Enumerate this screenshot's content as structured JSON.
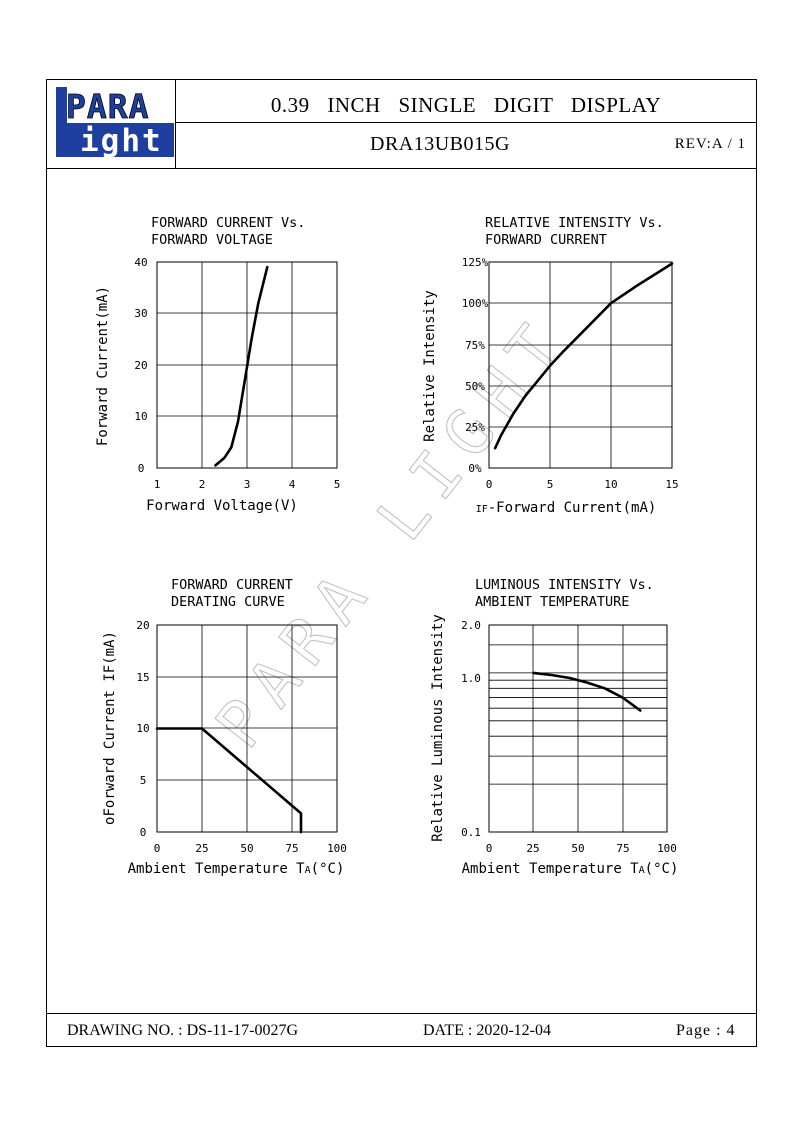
{
  "header": {
    "logo_top": "PARA",
    "logo_bottom": "ight",
    "logo_l": "L",
    "title": "0.39 INCH SINGLE DIGIT DISPLAY",
    "part_number": "DRA13UB015G",
    "revision": "REV:A / 1"
  },
  "watermark": "PARA LIGHT",
  "footer": {
    "drawing_no": "DRAWING NO. : DS-11-17-0027G",
    "date": "DATE : 2020-12-04",
    "page": "Page : 4"
  },
  "chart_data": [
    {
      "type": "line",
      "title_line1": "FORWARD CURRENT Vs.",
      "title_line2": "FORWARD VOLTAGE",
      "xlabel": "Forward Voltage(V)",
      "ylabel": "Forward Current(mA)",
      "xlim": [
        1,
        5
      ],
      "ylim": [
        0,
        40
      ],
      "xticks": [
        "1",
        "2",
        "3",
        "4",
        "5"
      ],
      "yticks": [
        "0",
        "10",
        "20",
        "30",
        "40"
      ],
      "grid": true,
      "series": [
        {
          "x": [
            2.3,
            2.5,
            2.65,
            2.8,
            2.95,
            3.1,
            3.25,
            3.45
          ],
          "y": [
            0.5,
            2,
            4,
            9,
            17,
            25,
            32,
            39
          ]
        }
      ]
    },
    {
      "type": "line",
      "title_line1": "RELATIVE INTENSITY Vs.",
      "title_line2": "FORWARD CURRENT",
      "xlabel": "IF-Forward Current(mA)",
      "xlabel_prefix": "IF",
      "xlabel_rest": "-Forward Current(mA)",
      "ylabel": "Relative Intensity",
      "xlim": [
        0,
        15
      ],
      "ylim": [
        0,
        125
      ],
      "xticks": [
        "0",
        "5",
        "10",
        "15"
      ],
      "yticks": [
        "0%",
        "25%",
        "50%",
        "75%",
        "100%",
        "125%"
      ],
      "grid": true,
      "series": [
        {
          "x": [
            0.5,
            1,
            2,
            3,
            4,
            5,
            6,
            8,
            10,
            12,
            15
          ],
          "y": [
            12,
            20,
            33,
            44,
            53,
            62,
            70,
            85,
            100,
            110,
            124
          ]
        }
      ]
    },
    {
      "type": "line",
      "title_line1": "FORWARD CURRENT",
      "title_line2": "DERATING CURVE",
      "xlabel": "Ambient Temperature TA(°C)",
      "xlabel_prefix": "Ambient Temperature T",
      "xlabel_sub": "A",
      "xlabel_rest": "(°C)",
      "ylabel": "oForward Current IF(mA)",
      "xlim": [
        0,
        100
      ],
      "ylim": [
        0,
        20
      ],
      "xticks": [
        "0",
        "25",
        "50",
        "75",
        "100"
      ],
      "yticks": [
        "0",
        "5",
        "10",
        "15",
        "20"
      ],
      "grid": true,
      "series": [
        {
          "x": [
            0,
            25,
            80,
            80
          ],
          "y": [
            10,
            10,
            1.8,
            0
          ]
        }
      ]
    },
    {
      "type": "line",
      "title_line1": "LUMINOUS INTENSITY Vs.",
      "title_line2": "AMBIENT TEMPERATURE",
      "xlabel": "Ambient Temperature TA(°C)",
      "xlabel_prefix": "Ambient Temperature T",
      "xlabel_sub": "A",
      "xlabel_rest": "(°C)",
      "ylabel": "Relative Luminous Intensity",
      "xlim": [
        0,
        100
      ],
      "ylim": [
        0.1,
        2.0
      ],
      "yscale": "log",
      "xticks": [
        "0",
        "25",
        "50",
        "75",
        "100"
      ],
      "yticks": [
        "0.1",
        "1.0",
        "2.0"
      ],
      "grid": true,
      "series": [
        {
          "x": [
            25,
            35,
            45,
            55,
            65,
            75,
            85
          ],
          "y": [
            1.0,
            0.97,
            0.93,
            0.87,
            0.8,
            0.7,
            0.58
          ]
        }
      ]
    }
  ]
}
